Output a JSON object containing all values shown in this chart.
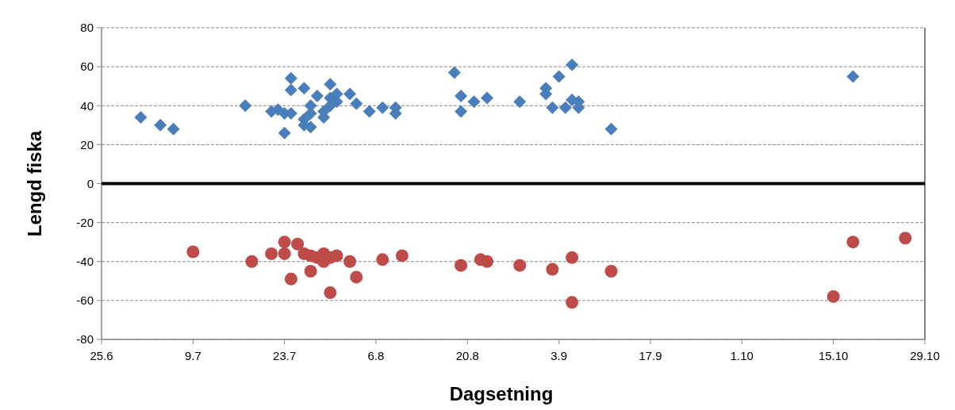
{
  "chart_data": {
    "type": "scatter",
    "xlabel": "Dagsetning",
    "ylabel": "Lengd fiska",
    "xlim": [
      "--06-25",
      "--10-29"
    ],
    "xticks": [
      {
        "value": "--06-25",
        "label": "25.6"
      },
      {
        "value": "--07-09",
        "label": "9.7"
      },
      {
        "value": "--07-23",
        "label": "23.7"
      },
      {
        "value": "--08-06",
        "label": "6.8"
      },
      {
        "value": "--08-20",
        "label": "20.8"
      },
      {
        "value": "--09-03",
        "label": "3.9"
      },
      {
        "value": "--09-17",
        "label": "17.9"
      },
      {
        "value": "--10-01",
        "label": "1.10"
      },
      {
        "value": "--10-15",
        "label": "15.10"
      },
      {
        "value": "--10-29",
        "label": "29.10"
      }
    ],
    "ylim": [
      -80,
      80
    ],
    "yticks": [
      -80,
      -60,
      -40,
      -20,
      0,
      20,
      40,
      60,
      80
    ],
    "grid": "y",
    "ref_lines": [
      {
        "axis": "y",
        "value": 0,
        "color": "#000000"
      }
    ],
    "series": [
      {
        "color": "#4a7ebb",
        "marker": "diamond",
        "x": [
          "--07-01",
          "--07-04",
          "--07-06",
          "--07-17",
          "--07-22",
          "--07-21",
          "--07-23",
          "--07-23",
          "--07-24",
          "--07-24",
          "--07-24",
          "--07-26",
          "--07-26",
          "--07-26",
          "--07-27",
          "--07-27",
          "--07-27",
          "--07-28",
          "--07-29",
          "--07-29",
          "--07-30",
          "--07-30",
          "--07-30",
          "--07-31",
          "--07-31",
          "--08-02",
          "--08-03",
          "--08-05",
          "--08-07",
          "--08-09",
          "--08-09",
          "--08-18",
          "--08-19",
          "--08-19",
          "--08-21",
          "--08-23",
          "--08-28",
          "--09-01",
          "--09-01",
          "--09-02",
          "--09-03",
          "--09-05",
          "--09-05",
          "--09-04",
          "--09-06",
          "--09-06",
          "--09-11",
          "--10-18"
        ],
        "values": [
          34,
          30,
          28,
          40,
          38,
          37,
          26,
          36,
          48,
          54,
          36,
          49,
          33,
          30,
          40,
          36,
          29,
          45,
          37,
          34,
          40,
          51,
          44,
          42,
          46,
          46,
          41,
          37,
          39,
          39,
          36,
          57,
          37,
          45,
          42,
          44,
          42,
          49,
          46,
          39,
          55,
          61,
          43,
          39,
          42,
          39,
          28,
          55
        ]
      },
      {
        "color": "#be4b48",
        "marker": "circle",
        "x": [
          "--07-09",
          "--07-18",
          "--07-21",
          "--07-23",
          "--07-23",
          "--07-24",
          "--07-25",
          "--07-26",
          "--07-27",
          "--07-27",
          "--07-28",
          "--07-29",
          "--07-29",
          "--07-30",
          "--07-30",
          "--07-31",
          "--08-02",
          "--08-03",
          "--08-07",
          "--08-10",
          "--08-19",
          "--08-22",
          "--08-23",
          "--08-28",
          "--09-02",
          "--09-05",
          "--09-05",
          "--09-11",
          "--10-15",
          "--10-18",
          "--10-26"
        ],
        "values": [
          -35,
          -40,
          -36,
          -30,
          -36,
          -49,
          -31,
          -36,
          -45,
          -37,
          -38,
          -36,
          -40,
          -56,
          -38,
          -37,
          -40,
          -48,
          -39,
          -37,
          -42,
          -39,
          -40,
          -42,
          -44,
          -61,
          -38,
          -45,
          -58,
          -30,
          -28
        ]
      }
    ]
  }
}
